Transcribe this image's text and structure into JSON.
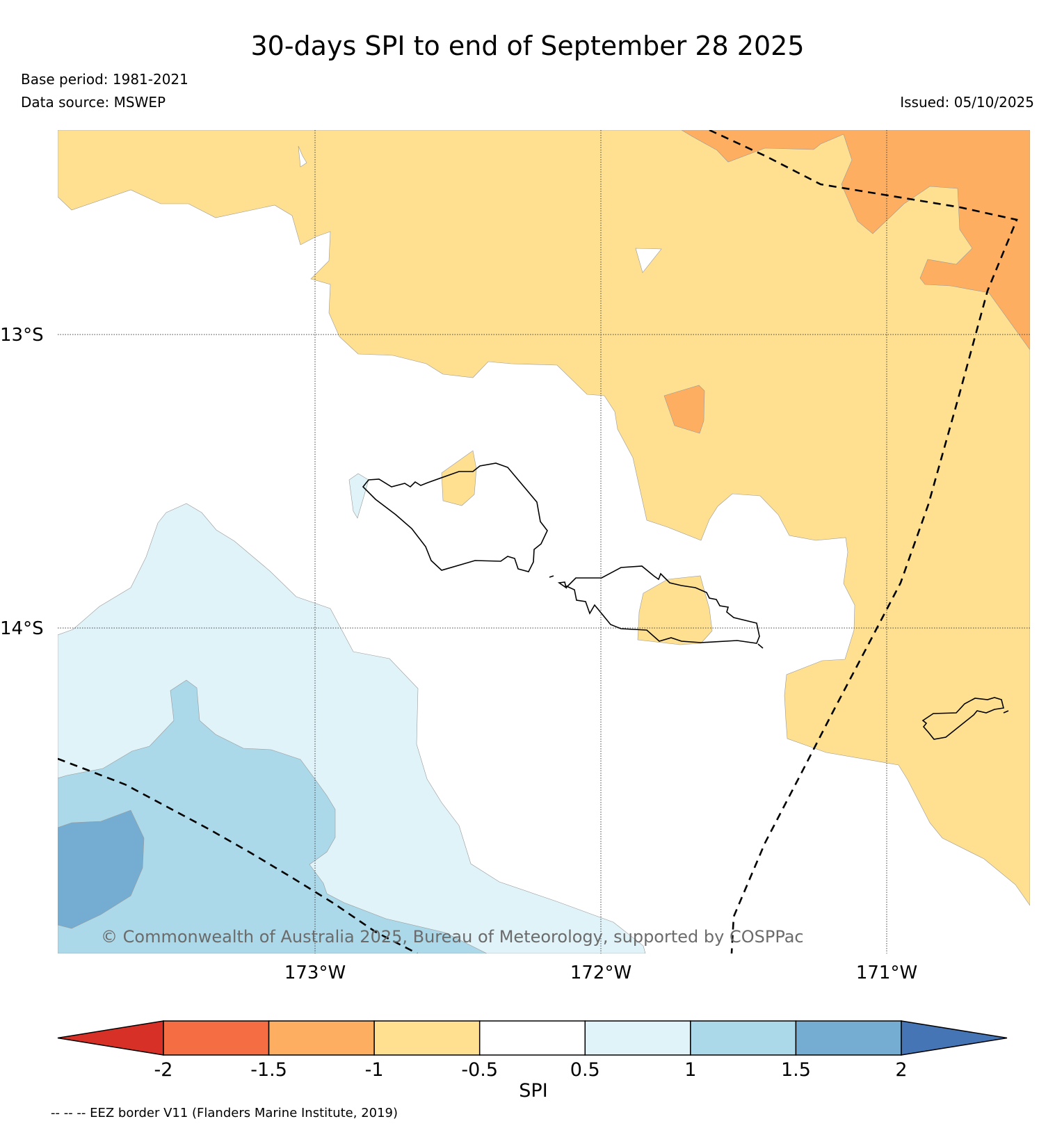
{
  "title": "30-days SPI to end of September 28 2025",
  "base_period": "Base period: 1981-2021",
  "data_source": "Data source: MSWEP",
  "issued": "Issued: 05/10/2025",
  "copyright": "© Commonwealth of Australia 2025, Bureau of Meteorology, supported by COSPPac",
  "footnote": "-- -- -- EEZ border V11 (Flanders Marine Institute, 2019)",
  "axes": {
    "lat_labels": [
      "13°S",
      "14°S"
    ],
    "lon_labels": [
      "173°W",
      "172°W",
      "171°W"
    ]
  },
  "colorbar": {
    "label": "SPI",
    "ticks": [
      "-2",
      "-1.5",
      "-1",
      "-0.5",
      "0.5",
      "1",
      "1.5",
      "2"
    ],
    "colors": {
      "below_-2": "#d73027",
      "-2_to_-1.5": "#f46d43",
      "-1.5_to_-1": "#fdae61",
      "-1_to_-0.5": "#fee090",
      "-0.5_to_0.5": "#ffffff",
      "0.5_to_1": "#e0f3f8",
      "1_to_1.5": "#abd9e9",
      "1.5_to_2": "#74add1",
      "above_2": "#4575b4"
    }
  }
}
